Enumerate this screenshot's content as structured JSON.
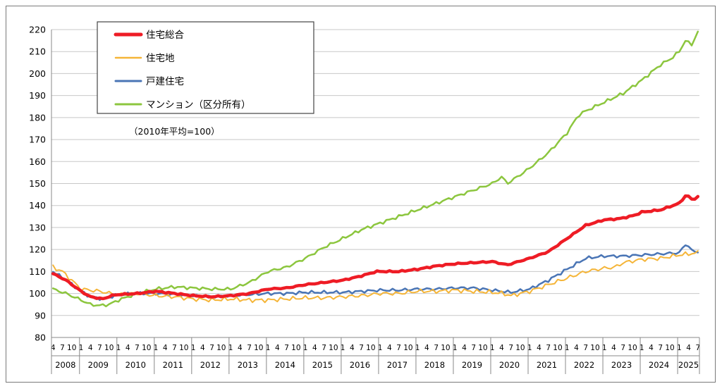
{
  "chart_data": {
    "type": "line",
    "note": "（2010年平均=100）",
    "ylim": [
      80,
      220
    ],
    "yticks": [
      80,
      90,
      100,
      110,
      120,
      130,
      140,
      150,
      160,
      170,
      180,
      190,
      200,
      210,
      220
    ],
    "month_tick_labels": [
      "1",
      "4",
      "7",
      "10"
    ],
    "years": [
      "2008",
      "2009",
      "2010",
      "2011",
      "2012",
      "2013",
      "2014",
      "2015",
      "2016",
      "2017",
      "2018",
      "2019",
      "2020",
      "2021",
      "2022",
      "2023",
      "2024",
      "2025"
    ],
    "x_start": "2008-04",
    "x_end": "2025-07",
    "grid": true,
    "legend_position": "top-left",
    "series": [
      {
        "name": "住宅総合",
        "color": "#ee1c25",
        "width": 4.5,
        "anchors": [
          [
            2008.25,
            109
          ],
          [
            2008.6,
            106
          ],
          [
            2009.0,
            101
          ],
          [
            2009.25,
            98.5
          ],
          [
            2009.6,
            97.5
          ],
          [
            2009.8,
            99
          ],
          [
            2010.0,
            99.5
          ],
          [
            2010.5,
            100
          ],
          [
            2011.0,
            101
          ],
          [
            2011.5,
            100
          ],
          [
            2012.0,
            99
          ],
          [
            2012.5,
            98.5
          ],
          [
            2013.0,
            99
          ],
          [
            2013.5,
            100
          ],
          [
            2014.0,
            102
          ],
          [
            2014.5,
            102.5
          ],
          [
            2015.0,
            104
          ],
          [
            2015.5,
            105
          ],
          [
            2016.0,
            106
          ],
          [
            2016.5,
            108
          ],
          [
            2016.9,
            110
          ],
          [
            2017.5,
            110
          ],
          [
            2018.0,
            111
          ],
          [
            2018.5,
            112.5
          ],
          [
            2019.0,
            113.5
          ],
          [
            2019.5,
            114
          ],
          [
            2020.0,
            114.5
          ],
          [
            2020.4,
            113
          ],
          [
            2020.8,
            115
          ],
          [
            2021.0,
            116
          ],
          [
            2021.5,
            119
          ],
          [
            2022.0,
            125
          ],
          [
            2022.5,
            131
          ],
          [
            2023.0,
            133.5
          ],
          [
            2023.4,
            134
          ],
          [
            2023.8,
            135.5
          ],
          [
            2024.0,
            137
          ],
          [
            2024.5,
            138
          ],
          [
            2025.0,
            141
          ],
          [
            2025.2,
            145
          ],
          [
            2025.35,
            142.5
          ],
          [
            2025.5,
            144
          ]
        ]
      },
      {
        "name": "住宅地",
        "color": "#f5b538",
        "width": 2,
        "anchors": [
          [
            2008.25,
            112
          ],
          [
            2008.5,
            110
          ],
          [
            2008.75,
            106
          ],
          [
            2009.0,
            102
          ],
          [
            2009.5,
            101
          ],
          [
            2009.8,
            100
          ],
          [
            2010.0,
            99.5
          ],
          [
            2010.5,
            100
          ],
          [
            2011.0,
            99
          ],
          [
            2011.5,
            98.5
          ],
          [
            2012.0,
            97.5
          ],
          [
            2012.5,
            97
          ],
          [
            2013.0,
            97.5
          ],
          [
            2013.5,
            97
          ],
          [
            2014.0,
            97
          ],
          [
            2014.5,
            97.5
          ],
          [
            2015.0,
            98
          ],
          [
            2015.5,
            98
          ],
          [
            2016.0,
            98.5
          ],
          [
            2016.5,
            99
          ],
          [
            2017.0,
            100
          ],
          [
            2017.5,
            100
          ],
          [
            2018.0,
            101
          ],
          [
            2018.5,
            101
          ],
          [
            2019.0,
            101.5
          ],
          [
            2019.5,
            101
          ],
          [
            2020.0,
            100.5
          ],
          [
            2020.3,
            100
          ],
          [
            2020.5,
            99
          ],
          [
            2021.0,
            101
          ],
          [
            2021.5,
            104
          ],
          [
            2022.0,
            107
          ],
          [
            2022.5,
            110
          ],
          [
            2023.0,
            111.5
          ],
          [
            2023.3,
            112
          ],
          [
            2023.5,
            114
          ],
          [
            2024.0,
            115.5
          ],
          [
            2024.5,
            116
          ],
          [
            2025.0,
            117.5
          ],
          [
            2025.5,
            118.5
          ]
        ]
      },
      {
        "name": "戸建住宅",
        "color": "#4a75b5",
        "width": 2.5,
        "anchors": [
          [
            2008.25,
            110
          ],
          [
            2008.6,
            106
          ],
          [
            2009.0,
            101
          ],
          [
            2009.25,
            98.5
          ],
          [
            2009.6,
            97.5
          ],
          [
            2010.0,
            99.5
          ],
          [
            2010.5,
            100
          ],
          [
            2011.0,
            100
          ],
          [
            2011.5,
            99.5
          ],
          [
            2012.0,
            99
          ],
          [
            2012.5,
            98.5
          ],
          [
            2013.0,
            99
          ],
          [
            2013.5,
            99.5
          ],
          [
            2014.0,
            100
          ],
          [
            2014.5,
            100
          ],
          [
            2015.0,
            100.5
          ],
          [
            2015.5,
            100.5
          ],
          [
            2016.0,
            100.5
          ],
          [
            2016.5,
            101
          ],
          [
            2017.0,
            101.5
          ],
          [
            2017.5,
            101.5
          ],
          [
            2018.0,
            102
          ],
          [
            2018.5,
            102
          ],
          [
            2019.0,
            102.5
          ],
          [
            2019.5,
            102.5
          ],
          [
            2020.0,
            101.5
          ],
          [
            2020.5,
            100.5
          ],
          [
            2021.0,
            102
          ],
          [
            2021.5,
            106
          ],
          [
            2022.0,
            111
          ],
          [
            2022.3,
            114
          ],
          [
            2022.5,
            116
          ],
          [
            2023.0,
            117
          ],
          [
            2023.5,
            117
          ],
          [
            2024.0,
            117.5
          ],
          [
            2024.5,
            118
          ],
          [
            2025.0,
            118.5
          ],
          [
            2025.2,
            123
          ],
          [
            2025.35,
            119
          ],
          [
            2025.5,
            119
          ]
        ]
      },
      {
        "name": "マンション（区分所有）",
        "color": "#8cc63e",
        "width": 2.5,
        "anchors": [
          [
            2008.25,
            102
          ],
          [
            2008.6,
            100
          ],
          [
            2009.0,
            97
          ],
          [
            2009.25,
            95
          ],
          [
            2009.5,
            94.5
          ],
          [
            2009.75,
            95
          ],
          [
            2010.0,
            97
          ],
          [
            2010.5,
            100
          ],
          [
            2011.0,
            102
          ],
          [
            2011.5,
            103
          ],
          [
            2012.0,
            102.5
          ],
          [
            2012.5,
            102
          ],
          [
            2013.0,
            102
          ],
          [
            2013.5,
            105
          ],
          [
            2014.0,
            110
          ],
          [
            2014.5,
            112
          ],
          [
            2015.0,
            116
          ],
          [
            2015.5,
            121
          ],
          [
            2016.0,
            125
          ],
          [
            2016.5,
            129
          ],
          [
            2017.0,
            132
          ],
          [
            2017.5,
            135
          ],
          [
            2018.0,
            138
          ],
          [
            2018.5,
            141
          ],
          [
            2019.0,
            144
          ],
          [
            2019.5,
            147
          ],
          [
            2020.0,
            150
          ],
          [
            2020.25,
            153
          ],
          [
            2020.4,
            150
          ],
          [
            2020.75,
            154
          ],
          [
            2021.0,
            157
          ],
          [
            2021.5,
            164
          ],
          [
            2022.0,
            173
          ],
          [
            2022.3,
            181
          ],
          [
            2022.5,
            183
          ],
          [
            2023.0,
            187
          ],
          [
            2023.5,
            191
          ],
          [
            2024.0,
            197
          ],
          [
            2024.5,
            204
          ],
          [
            2024.8,
            207
          ],
          [
            2025.0,
            210
          ],
          [
            2025.2,
            216
          ],
          [
            2025.3,
            212
          ],
          [
            2025.5,
            219
          ]
        ]
      }
    ]
  }
}
